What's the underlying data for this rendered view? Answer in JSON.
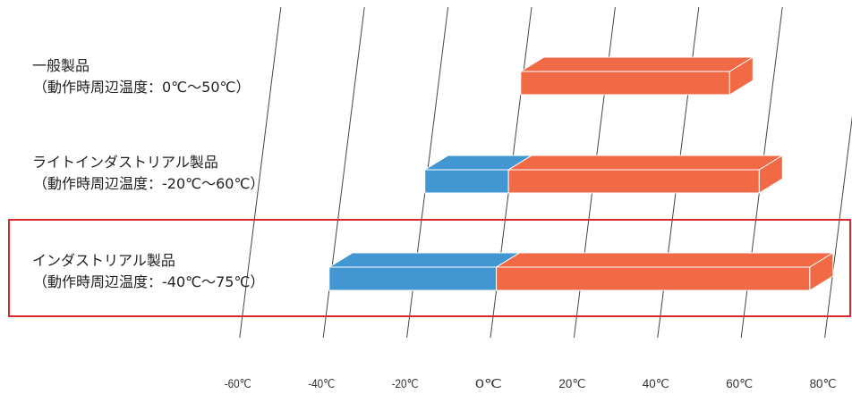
{
  "chart_data": {
    "type": "bar",
    "orientation": "horizontal",
    "stacked": true,
    "style": "3d",
    "categories": [
      "一般製品",
      "ライトインダストリアル製品",
      "インダストリアル製品"
    ],
    "category_notes": [
      "（動作時周辺温度：0℃～50℃）",
      "（動作時周辺温度：-20℃～60℃）",
      "（動作時周辺温度：-40℃～75℃）"
    ],
    "ranges": [
      {
        "min": 0,
        "max": 50
      },
      {
        "min": -20,
        "max": 60
      },
      {
        "min": -40,
        "max": 75
      }
    ],
    "x_ticks": [
      "-60℃",
      "-40℃",
      "-20℃",
      "0℃",
      "20℃",
      "40℃",
      "60℃",
      "80℃"
    ],
    "x_tick_values": [
      -60,
      -40,
      -20,
      0,
      20,
      40,
      60,
      80
    ],
    "xlim": [
      -60,
      80
    ],
    "grid": true,
    "highlighted_category": "インダストリアル製品",
    "colors": {
      "above_zero": "#f26a45",
      "below_zero": "#4297d3",
      "grid": "#444444",
      "highlight": "#e0262c"
    }
  }
}
